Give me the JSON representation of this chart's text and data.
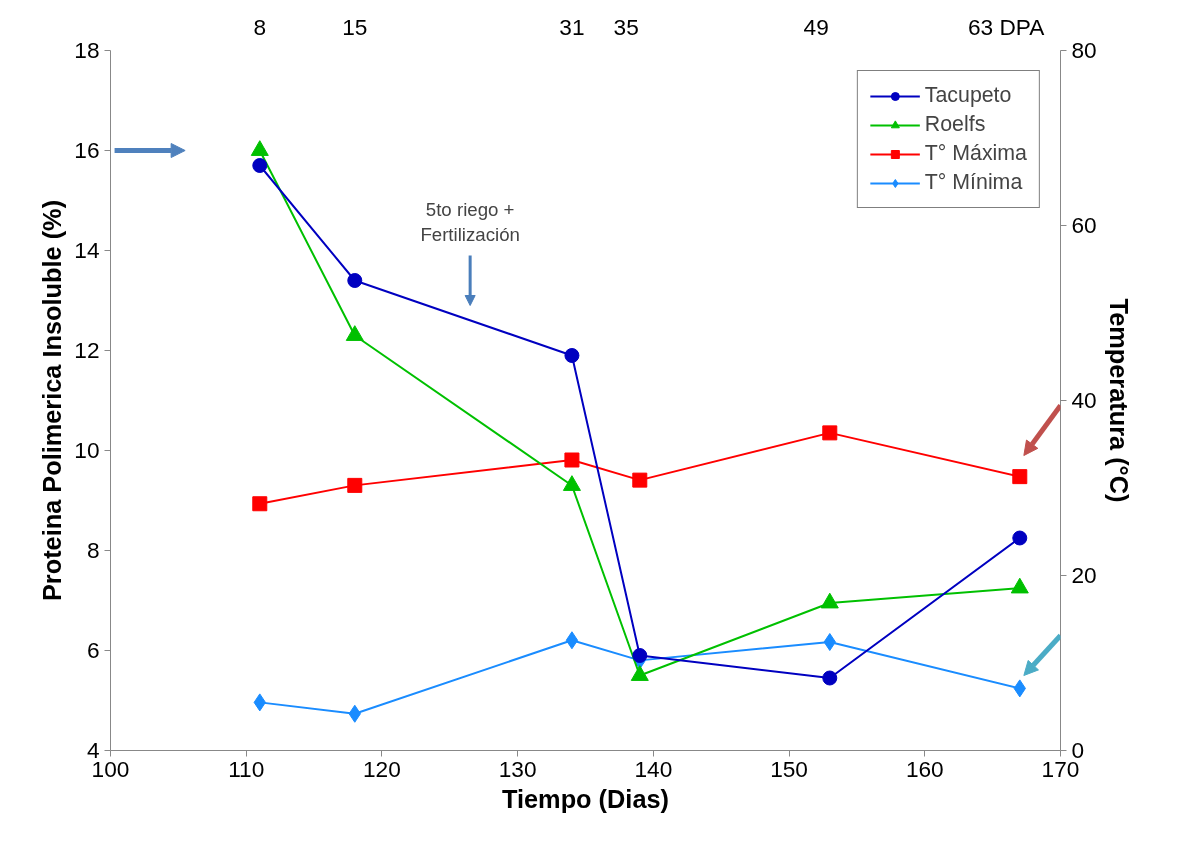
{
  "chart_data": {
    "type": "line",
    "xlabel": "Tiempo (Dias)",
    "ylabel": "Proteina Polimerica Insoluble (%)",
    "y2label": "Temperatura (°C)",
    "xlim": [
      100,
      170
    ],
    "xticks": [
      100,
      110,
      120,
      130,
      140,
      150,
      160,
      170
    ],
    "ylim": [
      4,
      18
    ],
    "yticks": [
      4,
      6,
      8,
      10,
      12,
      14,
      16,
      18
    ],
    "y2lim": [
      0,
      80
    ],
    "y2ticks": [
      0,
      20,
      40,
      60,
      80
    ],
    "x2lim": [
      -3,
      67
    ],
    "x2ticks": [
      8,
      15,
      31,
      35,
      49,
      {
        "value": 63,
        "label": "63 DPA"
      }
    ],
    "x": [
      111,
      118,
      134,
      139,
      153,
      167
    ],
    "series": [
      {
        "name": "Tacupeto",
        "color": "#0000c0",
        "marker": "circle",
        "values": [
          15.7,
          13.4,
          11.9,
          5.9,
          5.45,
          8.25
        ]
      },
      {
        "name": "Roelfs",
        "color": "#00c000",
        "marker": "triangle",
        "values": [
          16.0,
          12.3,
          9.3,
          5.5,
          6.95,
          7.25
        ]
      },
      {
        "name": "T° Máxima",
        "color": "#ff0000",
        "marker": "square",
        "axis": "y2",
        "values": [
          28.2,
          30.3,
          33.2,
          30.9,
          36.3,
          31.3
        ]
      },
      {
        "name": "T° Mínima",
        "color": "#1a8cff",
        "marker": "diamond",
        "axis": "y2",
        "values": [
          5.5,
          4.2,
          12.6,
          10.3,
          12.4,
          7.1
        ]
      }
    ],
    "annotations": [
      "5to riego +\nFertilización"
    ],
    "grid": false,
    "legend": "top right",
    "line_style": "solid"
  }
}
